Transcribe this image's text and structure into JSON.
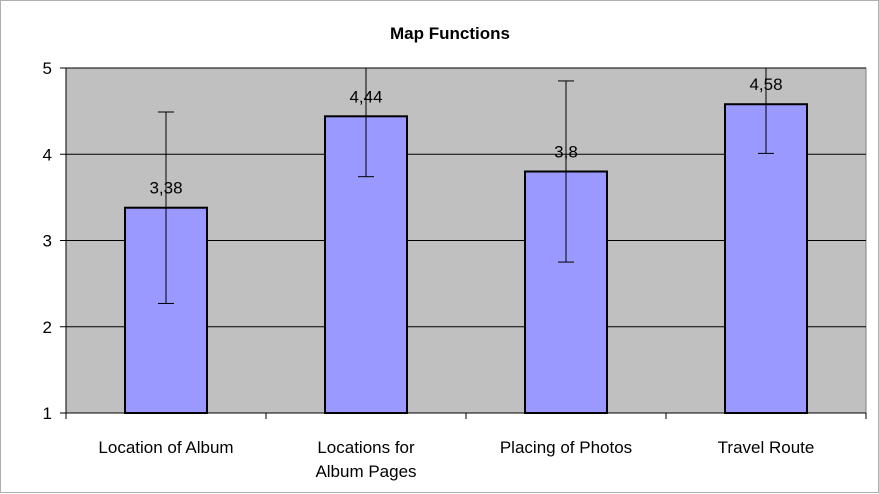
{
  "chart_data": {
    "type": "bar",
    "title": "Map Functions",
    "xlabel": "",
    "ylabel": "",
    "ylim": [
      1,
      5
    ],
    "yticks": [
      "1",
      "2",
      "3",
      "4",
      "5"
    ],
    "categories": [
      [
        "Location of Album"
      ],
      [
        "Locations for",
        "Album Pages"
      ],
      [
        "Placing of Photos"
      ],
      [
        "Travel Route"
      ]
    ],
    "values": [
      3.38,
      4.44,
      3.8,
      4.58
    ],
    "value_labels": [
      "3,38",
      "4,44",
      "3,8",
      "4,58"
    ],
    "error_low": [
      2.27,
      3.74,
      2.75,
      4.01
    ],
    "error_high": [
      4.49,
      5.0,
      4.85,
      5.0
    ],
    "grid": true,
    "legend": "none",
    "colors": {
      "plot_background": "#c0c0c0",
      "bar_fill": "#9999ff",
      "bar_stroke": "#000000",
      "gridline": "#000000"
    }
  }
}
